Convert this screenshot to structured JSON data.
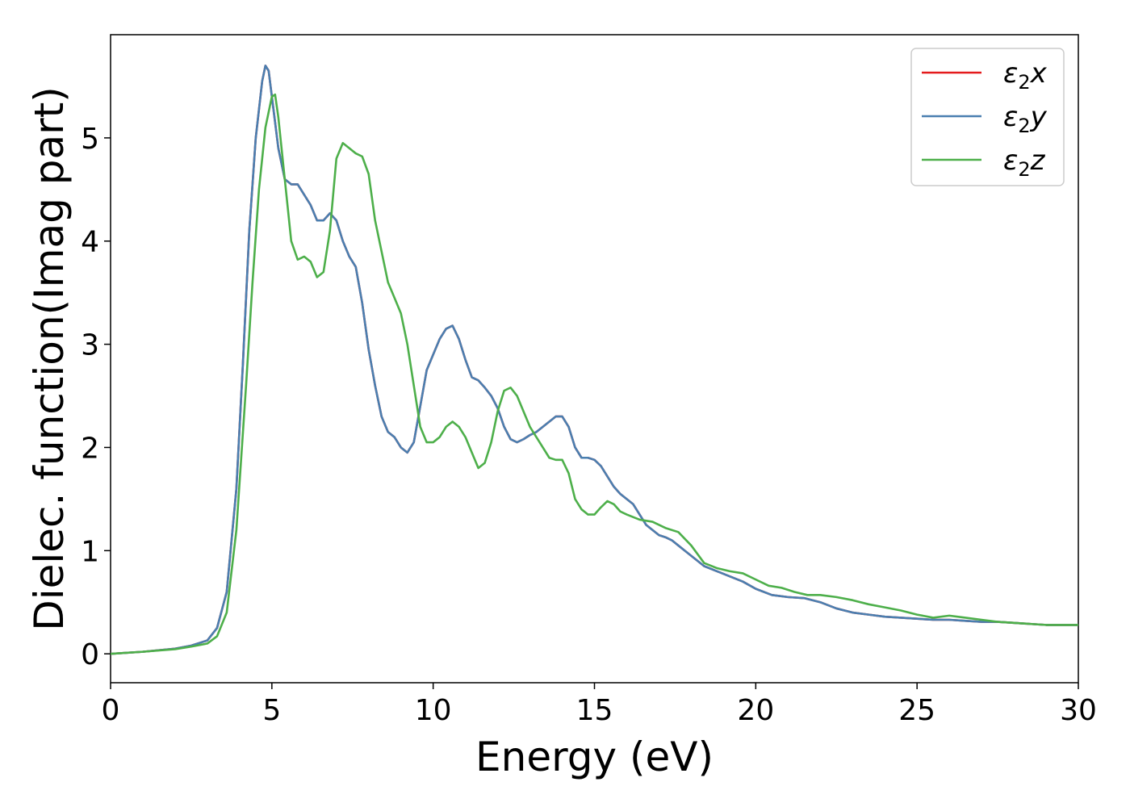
{
  "chart_data": {
    "type": "line",
    "xlabel": "Energy (eV)",
    "ylabel": "Dielec. function(Imag part)",
    "xlim": [
      0,
      30
    ],
    "ylim": [
      -0.28,
      6.0
    ],
    "xticks": [
      0,
      5,
      10,
      15,
      20,
      25,
      30
    ],
    "yticks": [
      0,
      1,
      2,
      3,
      4,
      5
    ],
    "grid": false,
    "legend_position": "top-right",
    "series": [
      {
        "name": "ε₂x",
        "legend": {
          "base": "ε",
          "sub": "2",
          "axis": "x"
        },
        "color": "#e41a1c",
        "x": [
          0,
          1,
          2,
          2.5,
          3,
          3.3,
          3.6,
          3.9,
          4.1,
          4.3,
          4.5,
          4.7,
          4.8,
          4.9,
          5.0,
          5.2,
          5.4,
          5.6,
          5.8,
          6.0,
          6.2,
          6.4,
          6.6,
          6.8,
          7.0,
          7.2,
          7.4,
          7.6,
          7.8,
          8.0,
          8.2,
          8.4,
          8.6,
          8.8,
          9.0,
          9.2,
          9.4,
          9.6,
          9.8,
          10.0,
          10.2,
          10.4,
          10.6,
          10.8,
          11.0,
          11.2,
          11.4,
          11.6,
          11.8,
          12.0,
          12.2,
          12.4,
          12.6,
          12.8,
          13.0,
          13.2,
          13.4,
          13.6,
          13.8,
          14.0,
          14.2,
          14.4,
          14.6,
          14.8,
          15.0,
          15.2,
          15.4,
          15.6,
          15.8,
          16.0,
          16.2,
          16.4,
          16.6,
          16.8,
          17.0,
          17.2,
          17.4,
          17.6,
          17.8,
          18.0,
          18.4,
          18.8,
          19.2,
          19.6,
          20.0,
          20.5,
          21.0,
          21.5,
          22.0,
          22.5,
          23.0,
          23.5,
          24.0,
          24.5,
          25.0,
          25.5,
          26.0,
          26.5,
          27.0,
          27.5,
          28.0,
          28.5,
          29.0,
          29.5,
          30.0
        ],
        "y": [
          0,
          0.02,
          0.05,
          0.08,
          0.13,
          0.25,
          0.6,
          1.6,
          2.8,
          4.1,
          5.0,
          5.55,
          5.7,
          5.65,
          5.4,
          4.9,
          4.6,
          4.55,
          4.55,
          4.45,
          4.35,
          4.2,
          4.2,
          4.27,
          4.2,
          4.0,
          3.85,
          3.75,
          3.4,
          2.95,
          2.6,
          2.3,
          2.15,
          2.1,
          2.0,
          1.95,
          2.05,
          2.4,
          2.75,
          2.9,
          3.05,
          3.15,
          3.18,
          3.05,
          2.85,
          2.68,
          2.65,
          2.58,
          2.5,
          2.38,
          2.2,
          2.08,
          2.05,
          2.08,
          2.12,
          2.15,
          2.2,
          2.25,
          2.3,
          2.3,
          2.2,
          2.0,
          1.9,
          1.9,
          1.88,
          1.82,
          1.72,
          1.62,
          1.55,
          1.5,
          1.45,
          1.35,
          1.25,
          1.2,
          1.15,
          1.13,
          1.1,
          1.05,
          1.0,
          0.95,
          0.85,
          0.8,
          0.75,
          0.7,
          0.63,
          0.57,
          0.55,
          0.54,
          0.5,
          0.44,
          0.4,
          0.38,
          0.36,
          0.35,
          0.34,
          0.33,
          0.33,
          0.32,
          0.31,
          0.31,
          0.3,
          0.29,
          0.28,
          0.28,
          0.28
        ]
      },
      {
        "name": "ε₂y",
        "legend": {
          "base": "ε",
          "sub": "2",
          "axis": "y"
        },
        "color": "#4a7fb0",
        "x": [
          0,
          1,
          2,
          2.5,
          3,
          3.3,
          3.6,
          3.9,
          4.1,
          4.3,
          4.5,
          4.7,
          4.8,
          4.9,
          5.0,
          5.2,
          5.4,
          5.6,
          5.8,
          6.0,
          6.2,
          6.4,
          6.6,
          6.8,
          7.0,
          7.2,
          7.4,
          7.6,
          7.8,
          8.0,
          8.2,
          8.4,
          8.6,
          8.8,
          9.0,
          9.2,
          9.4,
          9.6,
          9.8,
          10.0,
          10.2,
          10.4,
          10.6,
          10.8,
          11.0,
          11.2,
          11.4,
          11.6,
          11.8,
          12.0,
          12.2,
          12.4,
          12.6,
          12.8,
          13.0,
          13.2,
          13.4,
          13.6,
          13.8,
          14.0,
          14.2,
          14.4,
          14.6,
          14.8,
          15.0,
          15.2,
          15.4,
          15.6,
          15.8,
          16.0,
          16.2,
          16.4,
          16.6,
          16.8,
          17.0,
          17.2,
          17.4,
          17.6,
          17.8,
          18.0,
          18.4,
          18.8,
          19.2,
          19.6,
          20.0,
          20.5,
          21.0,
          21.5,
          22.0,
          22.5,
          23.0,
          23.5,
          24.0,
          24.5,
          25.0,
          25.5,
          26.0,
          26.5,
          27.0,
          27.5,
          28.0,
          28.5,
          29.0,
          29.5,
          30.0
        ],
        "y": [
          0,
          0.02,
          0.05,
          0.08,
          0.13,
          0.25,
          0.6,
          1.6,
          2.8,
          4.1,
          5.0,
          5.55,
          5.7,
          5.65,
          5.4,
          4.9,
          4.6,
          4.55,
          4.55,
          4.45,
          4.35,
          4.2,
          4.2,
          4.27,
          4.2,
          4.0,
          3.85,
          3.75,
          3.4,
          2.95,
          2.6,
          2.3,
          2.15,
          2.1,
          2.0,
          1.95,
          2.05,
          2.4,
          2.75,
          2.9,
          3.05,
          3.15,
          3.18,
          3.05,
          2.85,
          2.68,
          2.65,
          2.58,
          2.5,
          2.38,
          2.2,
          2.08,
          2.05,
          2.08,
          2.12,
          2.15,
          2.2,
          2.25,
          2.3,
          2.3,
          2.2,
          2.0,
          1.9,
          1.9,
          1.88,
          1.82,
          1.72,
          1.62,
          1.55,
          1.5,
          1.45,
          1.35,
          1.25,
          1.2,
          1.15,
          1.13,
          1.1,
          1.05,
          1.0,
          0.95,
          0.85,
          0.8,
          0.75,
          0.7,
          0.63,
          0.57,
          0.55,
          0.54,
          0.5,
          0.44,
          0.4,
          0.38,
          0.36,
          0.35,
          0.34,
          0.33,
          0.33,
          0.32,
          0.31,
          0.31,
          0.3,
          0.29,
          0.28,
          0.28,
          0.28
        ]
      },
      {
        "name": "ε₂z",
        "legend": {
          "base": "ε",
          "sub": "2",
          "axis": "z"
        },
        "color": "#4daf4a",
        "x": [
          0,
          1,
          2,
          2.5,
          3,
          3.3,
          3.6,
          3.9,
          4.2,
          4.4,
          4.6,
          4.8,
          5.0,
          5.1,
          5.2,
          5.4,
          5.6,
          5.8,
          6.0,
          6.2,
          6.4,
          6.6,
          6.8,
          7.0,
          7.2,
          7.4,
          7.6,
          7.8,
          8.0,
          8.2,
          8.4,
          8.6,
          8.8,
          9.0,
          9.2,
          9.4,
          9.6,
          9.8,
          10.0,
          10.2,
          10.4,
          10.6,
          10.8,
          11.0,
          11.2,
          11.4,
          11.6,
          11.8,
          12.0,
          12.2,
          12.4,
          12.6,
          12.8,
          13.0,
          13.2,
          13.4,
          13.6,
          13.8,
          14.0,
          14.2,
          14.4,
          14.6,
          14.8,
          15.0,
          15.2,
          15.4,
          15.6,
          15.8,
          16.0,
          16.4,
          16.8,
          17.2,
          17.6,
          18.0,
          18.4,
          18.8,
          19.2,
          19.6,
          20.0,
          20.4,
          20.8,
          21.2,
          21.6,
          22.0,
          22.5,
          23.0,
          23.5,
          24.0,
          24.5,
          25.0,
          25.5,
          26.0,
          26.5,
          27.0,
          27.5,
          28.0,
          28.5,
          29.0,
          29.5,
          30.0
        ],
        "y": [
          0,
          0.02,
          0.045,
          0.07,
          0.1,
          0.17,
          0.4,
          1.2,
          2.6,
          3.6,
          4.5,
          5.1,
          5.4,
          5.42,
          5.2,
          4.6,
          4.0,
          3.82,
          3.85,
          3.8,
          3.65,
          3.7,
          4.1,
          4.8,
          4.95,
          4.9,
          4.85,
          4.82,
          4.65,
          4.2,
          3.9,
          3.6,
          3.45,
          3.3,
          3.0,
          2.6,
          2.2,
          2.05,
          2.05,
          2.1,
          2.2,
          2.25,
          2.2,
          2.1,
          1.95,
          1.8,
          1.85,
          2.05,
          2.35,
          2.55,
          2.58,
          2.5,
          2.35,
          2.2,
          2.1,
          2.0,
          1.9,
          1.88,
          1.88,
          1.75,
          1.5,
          1.4,
          1.35,
          1.35,
          1.42,
          1.48,
          1.45,
          1.38,
          1.35,
          1.3,
          1.28,
          1.22,
          1.18,
          1.05,
          0.88,
          0.83,
          0.8,
          0.78,
          0.72,
          0.66,
          0.64,
          0.6,
          0.57,
          0.57,
          0.55,
          0.52,
          0.48,
          0.45,
          0.42,
          0.38,
          0.35,
          0.37,
          0.35,
          0.33,
          0.31,
          0.3,
          0.29,
          0.28,
          0.28,
          0.28
        ]
      }
    ]
  }
}
